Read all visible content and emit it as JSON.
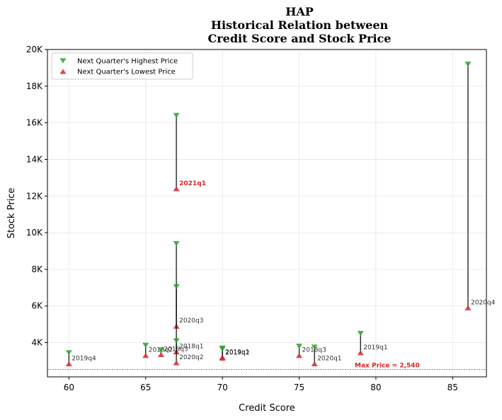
{
  "chart_data": {
    "type": "scatter",
    "title_lines": [
      "HAP",
      "Historical Relation between",
      "Credit Score and Stock Price"
    ],
    "xlabel": "Credit Score",
    "ylabel": "Stock Price",
    "xlim": [
      58.6,
      87.2
    ],
    "ylim": [
      2130,
      20000
    ],
    "x_ticks": [
      60,
      65,
      70,
      75,
      80,
      85
    ],
    "y_ticks": [
      4000,
      6000,
      8000,
      10000,
      12000,
      14000,
      16000,
      18000,
      20000
    ],
    "y_tick_labels": [
      "4K",
      "6K",
      "8K",
      "10K",
      "12K",
      "14K",
      "16K",
      "18K",
      "20K"
    ],
    "grid": true,
    "legend_position": "upper-left",
    "colors": {
      "high": "#2ca02c",
      "low": "#d62728",
      "connector": "#000000",
      "max_line": "#d62728"
    },
    "series": [
      {
        "name": "Next Quarter's Highest Price",
        "marker": "triangle-down",
        "color": "#2ca02c"
      },
      {
        "name": "Next Quarter's Lowest Price",
        "marker": "triangle-up",
        "color": "#d62728"
      }
    ],
    "points": [
      {
        "label": "2019q4",
        "x": 60,
        "high": 3450,
        "low": 2850,
        "highlight": false
      },
      {
        "label": "2018q2",
        "x": 65,
        "high": 3850,
        "low": 3300,
        "highlight": false
      },
      {
        "label": "2019q3",
        "x": 66,
        "high": 3600,
        "low": 3350,
        "highlight": false
      },
      {
        "label": "2021q1",
        "x": 67,
        "high": 16400,
        "low": 12400,
        "highlight": true
      },
      {
        "label": "2020q3",
        "x": 67,
        "high": 9400,
        "low": 4900,
        "highlight": false
      },
      {
        "label": "2018q1",
        "x": 67,
        "high": 7050,
        "low": 3500,
        "highlight": false
      },
      {
        "label": "2020q2",
        "x": 67,
        "high": 4100,
        "low": 2900,
        "highlight": false
      },
      {
        "label": "2019q1",
        "x": 70,
        "high": 3700,
        "low": 3200,
        "highlight": false
      },
      {
        "label": "2019q2",
        "x": 70,
        "high": 3650,
        "low": 3150,
        "highlight": false
      },
      {
        "label": "2018q3",
        "x": 75,
        "high": 3800,
        "low": 3300,
        "highlight": false
      },
      {
        "label": "2020q1",
        "x": 76,
        "high": 3750,
        "low": 2850,
        "highlight": false
      },
      {
        "label": "2019q1",
        "x": 79,
        "high": 4500,
        "low": 3450,
        "highlight": false
      },
      {
        "label": "2020q4",
        "x": 86,
        "high": 19200,
        "low": 5900,
        "highlight": false
      }
    ],
    "max_price": {
      "value": 2540,
      "label": "Max Price = 2,540"
    }
  }
}
